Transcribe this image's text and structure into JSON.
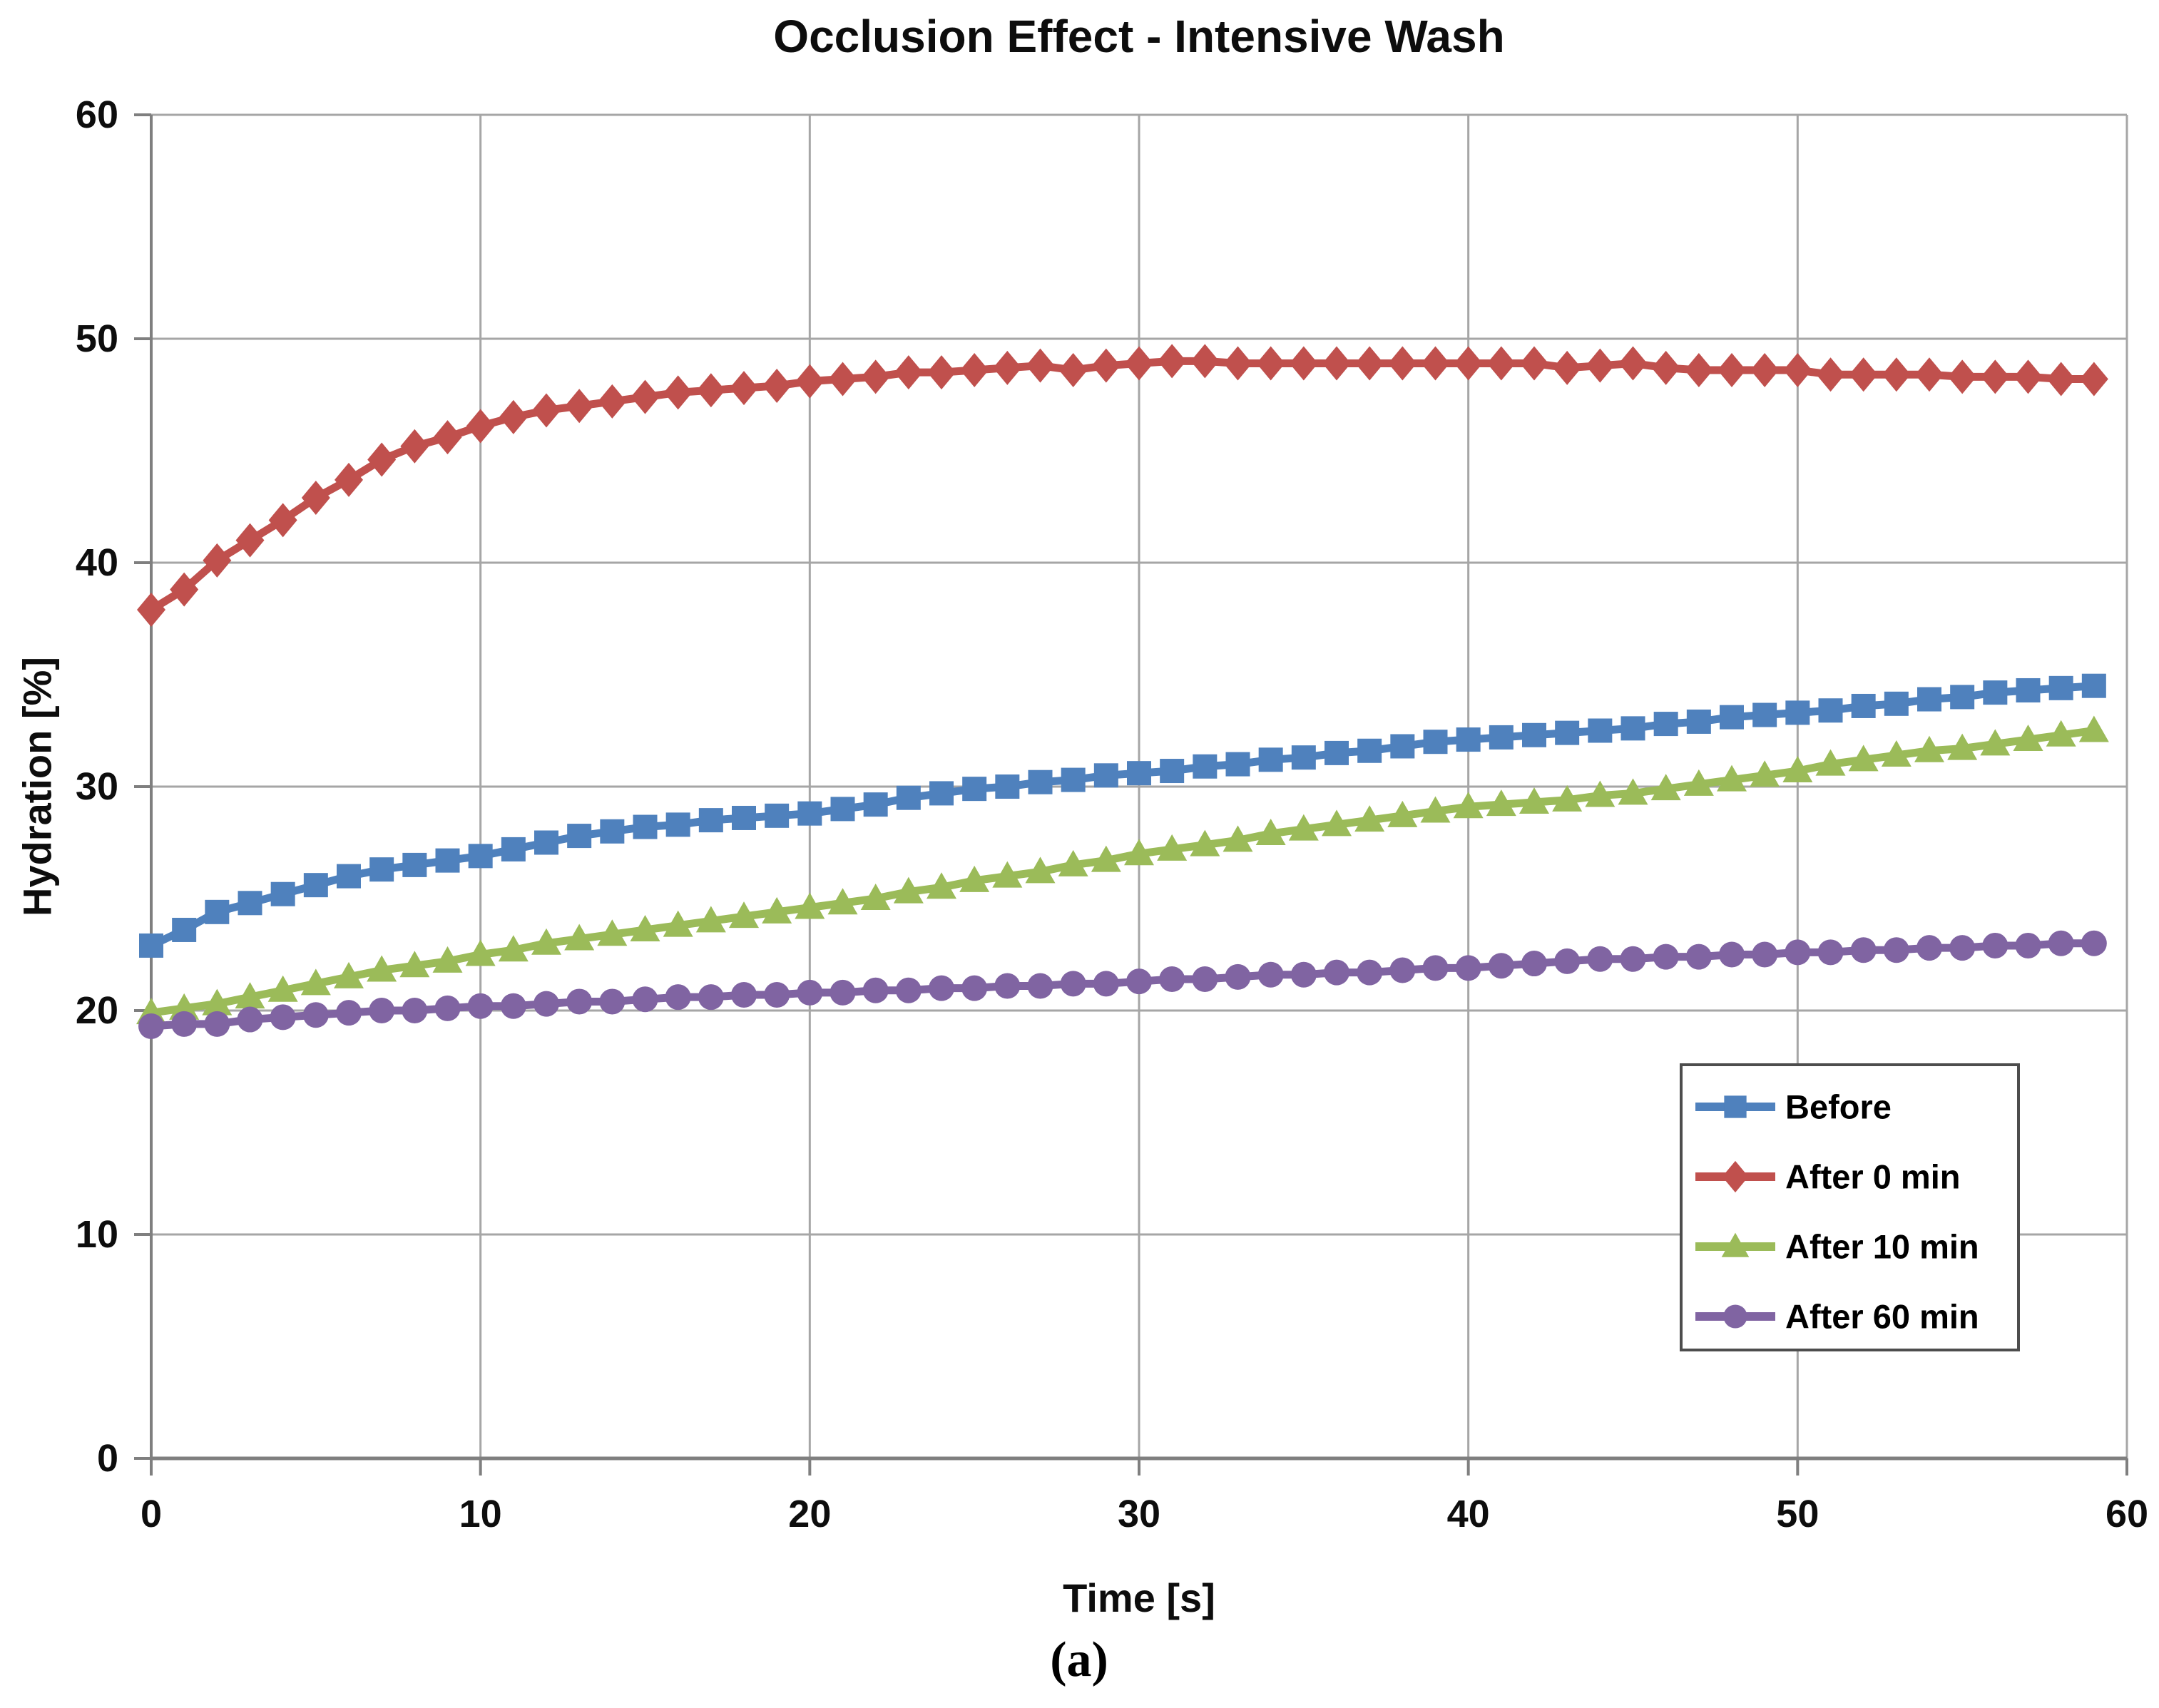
{
  "caption": "(a)",
  "chart_data": {
    "type": "line",
    "title": "Occlusion Effect - Intensive Wash",
    "xlabel": "Time [s]",
    "ylabel": "Hydration [%]",
    "xlim": [
      0,
      60
    ],
    "ylim": [
      0,
      60
    ],
    "xticks": [
      0,
      10,
      20,
      30,
      40,
      50,
      60
    ],
    "yticks": [
      0,
      10,
      20,
      30,
      40,
      50,
      60
    ],
    "grid": true,
    "legend_position": "lower right",
    "x_step": 1,
    "x_start": 0,
    "colors": {
      "gridline": "#a6a6a6",
      "axis": "#7f7f7f",
      "text": "#0d0d0d",
      "legend_border": "#4d4d4d",
      "legend_fill": "#ffffff"
    },
    "series": [
      {
        "name": "Before",
        "marker": "square",
        "color": "#4f81bd",
        "values": [
          22.9,
          23.6,
          24.4,
          24.8,
          25.2,
          25.6,
          26.0,
          26.3,
          26.5,
          26.7,
          26.9,
          27.2,
          27.5,
          27.8,
          28.0,
          28.2,
          28.3,
          28.5,
          28.6,
          28.7,
          28.8,
          29.0,
          29.2,
          29.5,
          29.7,
          29.9,
          30.0,
          30.2,
          30.3,
          30.5,
          30.6,
          30.7,
          30.9,
          31.0,
          31.2,
          31.3,
          31.5,
          31.6,
          31.8,
          32.0,
          32.1,
          32.2,
          32.3,
          32.4,
          32.5,
          32.6,
          32.8,
          32.9,
          33.1,
          33.2,
          33.3,
          33.4,
          33.6,
          33.7,
          33.9,
          34.0,
          34.2,
          34.3,
          34.4,
          34.5
        ]
      },
      {
        "name": "After 0 min",
        "marker": "diamond",
        "color": "#c0504d",
        "values": [
          37.9,
          38.8,
          40.1,
          41.0,
          41.9,
          42.9,
          43.7,
          44.6,
          45.2,
          45.6,
          46.1,
          46.5,
          46.8,
          47.0,
          47.2,
          47.4,
          47.6,
          47.7,
          47.8,
          47.9,
          48.1,
          48.2,
          48.3,
          48.5,
          48.5,
          48.6,
          48.7,
          48.8,
          48.6,
          48.8,
          48.9,
          49.0,
          49.0,
          48.9,
          48.9,
          48.9,
          48.9,
          48.9,
          48.9,
          48.9,
          48.9,
          48.9,
          48.9,
          48.7,
          48.8,
          48.9,
          48.7,
          48.6,
          48.6,
          48.6,
          48.6,
          48.4,
          48.4,
          48.4,
          48.4,
          48.3,
          48.3,
          48.3,
          48.2,
          48.2
        ]
      },
      {
        "name": "After 10 min",
        "marker": "triangle",
        "color": "#9bbb59",
        "values": [
          19.9,
          20.1,
          20.3,
          20.6,
          20.9,
          21.2,
          21.5,
          21.8,
          22.0,
          22.2,
          22.5,
          22.7,
          23.0,
          23.2,
          23.4,
          23.6,
          23.8,
          24.0,
          24.2,
          24.4,
          24.6,
          24.8,
          25.0,
          25.3,
          25.5,
          25.8,
          26.0,
          26.2,
          26.5,
          26.7,
          27.0,
          27.2,
          27.4,
          27.6,
          27.9,
          28.1,
          28.3,
          28.5,
          28.7,
          28.9,
          29.1,
          29.2,
          29.3,
          29.4,
          29.6,
          29.7,
          29.9,
          30.1,
          30.3,
          30.5,
          30.7,
          31.0,
          31.2,
          31.4,
          31.6,
          31.7,
          31.9,
          32.1,
          32.3,
          32.5
        ]
      },
      {
        "name": "After 60 min",
        "marker": "circle",
        "color": "#8064a2",
        "values": [
          19.3,
          19.4,
          19.4,
          19.6,
          19.7,
          19.8,
          19.9,
          20.0,
          20.0,
          20.1,
          20.2,
          20.2,
          20.3,
          20.4,
          20.4,
          20.5,
          20.6,
          20.6,
          20.7,
          20.7,
          20.8,
          20.8,
          20.9,
          20.9,
          21.0,
          21.0,
          21.1,
          21.1,
          21.2,
          21.2,
          21.3,
          21.4,
          21.4,
          21.5,
          21.6,
          21.6,
          21.7,
          21.7,
          21.8,
          21.9,
          21.9,
          22.0,
          22.1,
          22.2,
          22.3,
          22.3,
          22.4,
          22.4,
          22.5,
          22.5,
          22.6,
          22.6,
          22.7,
          22.7,
          22.8,
          22.8,
          22.9,
          22.9,
          23.0,
          23.0
        ]
      }
    ]
  }
}
